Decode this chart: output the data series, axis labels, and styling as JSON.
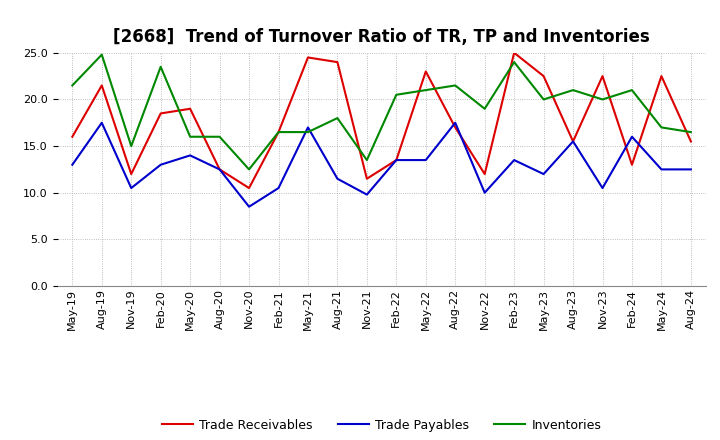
{
  "title": "[2668]  Trend of Turnover Ratio of TR, TP and Inventories",
  "x_labels": [
    "May-19",
    "Aug-19",
    "Nov-19",
    "Feb-20",
    "May-20",
    "Aug-20",
    "Nov-20",
    "Feb-21",
    "May-21",
    "Aug-21",
    "Nov-21",
    "Feb-22",
    "May-22",
    "Aug-22",
    "Nov-22",
    "Feb-23",
    "May-23",
    "Aug-23",
    "Nov-23",
    "Feb-24",
    "May-24",
    "Aug-24"
  ],
  "trade_receivables": [
    16.0,
    21.5,
    12.0,
    18.5,
    19.0,
    12.5,
    10.5,
    16.5,
    24.5,
    24.0,
    11.5,
    13.5,
    23.0,
    17.0,
    12.0,
    25.0,
    22.5,
    15.5,
    22.5,
    13.0,
    22.5,
    15.5
  ],
  "trade_payables": [
    13.0,
    17.5,
    10.5,
    13.0,
    14.0,
    12.5,
    8.5,
    10.5,
    17.0,
    11.5,
    9.8,
    13.5,
    13.5,
    17.5,
    10.0,
    13.5,
    12.0,
    15.5,
    10.5,
    16.0,
    12.5,
    12.5
  ],
  "inventories": [
    21.5,
    24.8,
    15.0,
    23.5,
    16.0,
    16.0,
    12.5,
    16.5,
    16.5,
    18.0,
    13.5,
    20.5,
    21.0,
    21.5,
    19.0,
    24.0,
    20.0,
    21.0,
    20.0,
    21.0,
    17.0,
    16.5
  ],
  "tr_color": "#dd0000",
  "tp_color": "#0000cc",
  "inv_color": "#008800",
  "ylim": [
    0.0,
    25.0
  ],
  "yticks": [
    0.0,
    5.0,
    10.0,
    15.0,
    20.0,
    25.0
  ],
  "legend_labels": [
    "Trade Receivables",
    "Trade Payables",
    "Inventories"
  ],
  "grid_color": "#aaaaaa",
  "line_width": 1.5,
  "title_fontsize": 12,
  "tick_fontsize": 8,
  "legend_fontsize": 9
}
